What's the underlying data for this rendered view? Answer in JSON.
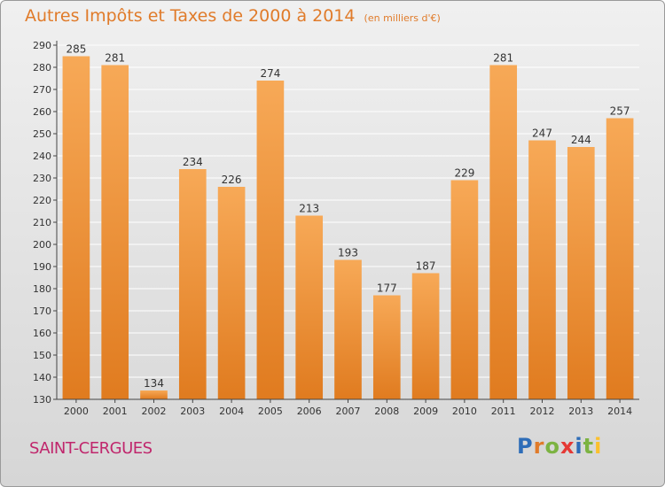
{
  "header": {
    "title": "Autres Impôts et Taxes de 2000 à 2014",
    "unit": "(en milliers d'€)"
  },
  "footer": {
    "place": "SAINT-CERGUES",
    "brand": "Proxiti"
  },
  "colors": {
    "title": "#e07b2a",
    "place": "#c0266c",
    "bar_light": "#f7a957",
    "bar_dark": "#e07b1f",
    "grid": "#ffffff",
    "axis": "#444444"
  },
  "chart_data": {
    "type": "bar",
    "title": "Autres Impôts et Taxes de 2000 à 2014",
    "subtitle": "(en milliers d'€)",
    "xlabel": "",
    "ylabel": "",
    "categories": [
      "2000",
      "2001",
      "2002",
      "2003",
      "2004",
      "2005",
      "2006",
      "2007",
      "2008",
      "2009",
      "2010",
      "2011",
      "2012",
      "2013",
      "2014"
    ],
    "values": [
      285,
      281,
      134,
      234,
      226,
      274,
      213,
      193,
      177,
      187,
      229,
      281,
      247,
      244,
      257
    ],
    "ylim": [
      130,
      290
    ],
    "yticks": [
      130,
      140,
      150,
      160,
      170,
      180,
      190,
      200,
      210,
      220,
      230,
      240,
      250,
      260,
      270,
      280,
      290
    ],
    "grid": true,
    "data_labels": true
  }
}
